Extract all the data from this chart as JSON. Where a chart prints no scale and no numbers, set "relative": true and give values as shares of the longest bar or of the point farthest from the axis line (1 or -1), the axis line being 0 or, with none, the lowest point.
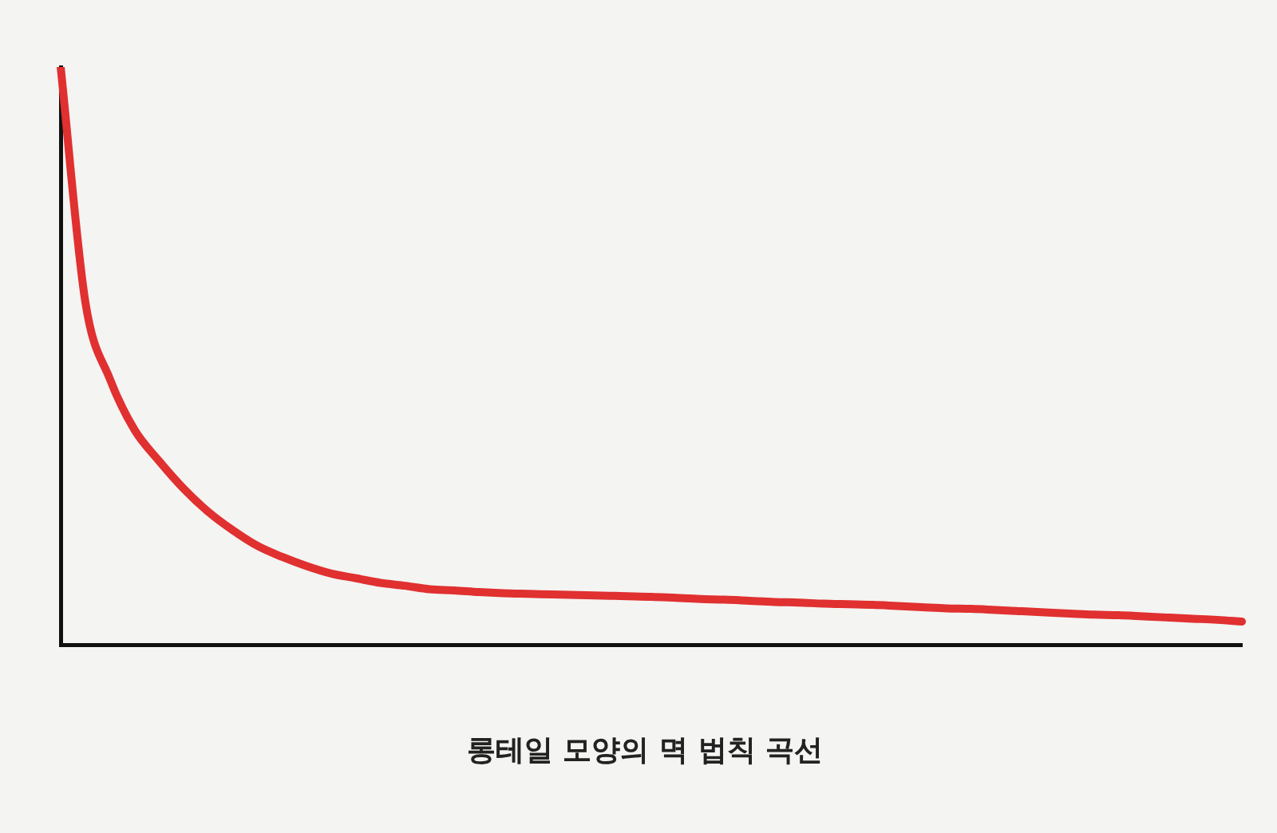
{
  "chart_data": {
    "type": "line",
    "title": "롱테일 모양의 멱 법칙 곡선",
    "relative": true,
    "grid": false,
    "legend": false,
    "marker": "none",
    "line_style": "solid",
    "categories": [
      null,
      null,
      null,
      null,
      null,
      null,
      null,
      null,
      null,
      null,
      null,
      null,
      null,
      null,
      null,
      null,
      null,
      null,
      null,
      null,
      null,
      null,
      null,
      null,
      null,
      null,
      null,
      null,
      null,
      null,
      null,
      null,
      null,
      null,
      null,
      null,
      null,
      null,
      null,
      null,
      null,
      null,
      null,
      null,
      null,
      null,
      null,
      null,
      null
    ],
    "series": [
      {
        "color": "#e03030",
        "values": [
          1,
          0.594,
          0.46,
          0.372,
          0.318,
          0.27,
          0.23,
          0.198,
          0.171,
          0.152,
          0.136,
          0.123,
          0.115,
          0.107,
          0.102,
          0.096,
          0.094,
          0.091,
          0.089,
          0.088,
          0.087,
          0.086,
          0.085,
          0.084,
          0.083,
          0.081,
          0.079,
          0.078,
          0.076,
          0.074,
          0.073,
          0.071,
          0.07,
          0.069,
          0.067,
          0.065,
          0.063,
          0.062,
          0.06,
          0.058,
          0.056,
          0.054,
          0.052,
          0.051,
          0.049,
          0.047,
          0.045,
          0.043,
          0.04
        ]
      }
    ]
  }
}
